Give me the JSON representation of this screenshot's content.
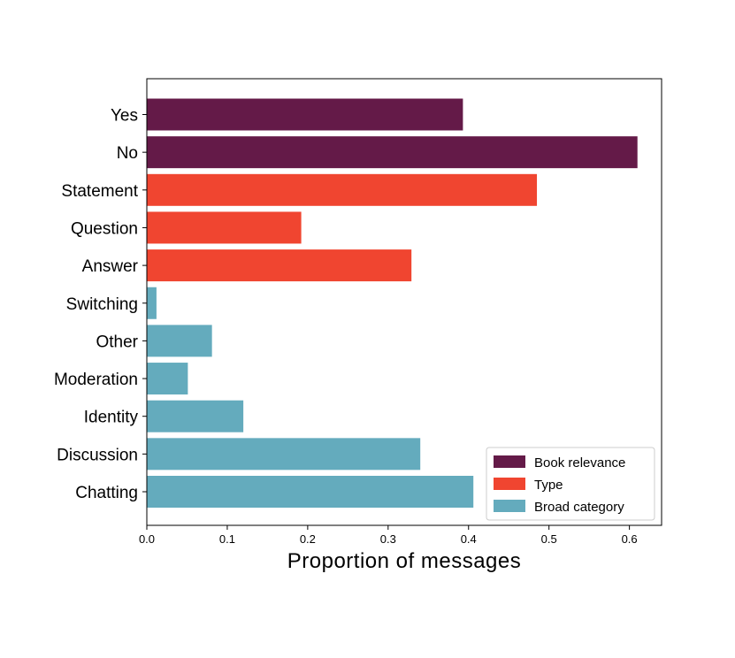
{
  "chart_data": {
    "type": "bar",
    "orientation": "horizontal",
    "title": "",
    "xlabel": "Proportion of messages",
    "ylabel": "",
    "xlim": [
      0,
      0.64
    ],
    "xticks": [
      "0.0",
      "0.1",
      "0.2",
      "0.3",
      "0.4",
      "0.5",
      "0.6"
    ],
    "grid": false,
    "legend_position": "bottom-right",
    "categories": [
      "Yes",
      "No",
      "Statement",
      "Question",
      "Answer",
      "Switching",
      "Other",
      "Moderation",
      "Identity",
      "Discussion",
      "Chatting"
    ],
    "series": [
      {
        "name": "Book relevance",
        "color": "#641a48",
        "bars": [
          {
            "category": "Yes",
            "value": 0.393
          },
          {
            "category": "No",
            "value": 0.61
          }
        ]
      },
      {
        "name": "Type",
        "color": "#f04530",
        "bars": [
          {
            "category": "Statement",
            "value": 0.485
          },
          {
            "category": "Question",
            "value": 0.192
          },
          {
            "category": "Answer",
            "value": 0.329
          }
        ]
      },
      {
        "name": "Broad category",
        "color": "#64abbd",
        "bars": [
          {
            "category": "Switching",
            "value": 0.012
          },
          {
            "category": "Other",
            "value": 0.081
          },
          {
            "category": "Moderation",
            "value": 0.051
          },
          {
            "category": "Identity",
            "value": 0.12
          },
          {
            "category": "Discussion",
            "value": 0.34
          },
          {
            "category": "Chatting",
            "value": 0.406
          }
        ]
      }
    ]
  }
}
